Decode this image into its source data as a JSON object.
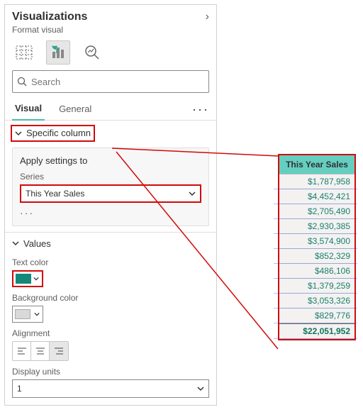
{
  "panel": {
    "title": "Visualizations",
    "subtitle": "Format visual",
    "collapse_icon": "›"
  },
  "search": {
    "placeholder": "Search"
  },
  "tabs": {
    "visual": "Visual",
    "general": "General"
  },
  "specific_column": {
    "label": "Specific column"
  },
  "apply_settings": {
    "title": "Apply settings to",
    "series_label": "Series",
    "series_value": "This Year Sales"
  },
  "values_section": {
    "title": "Values",
    "text_color_label": "Text color",
    "text_color": "#12897a",
    "bg_color_label": "Background color",
    "bg_color": "#d9d9d9",
    "alignment_label": "Alignment",
    "alignment": "right",
    "display_units_label": "Display units",
    "display_units_value": "1"
  },
  "table": {
    "header": "This Year Sales",
    "header_bg": "#64cfc0",
    "cell_bg": "#f3f2f1",
    "value_color": "#1a7f6e",
    "rows": [
      "$1,787,958",
      "$4,452,421",
      "$2,705,490",
      "$2,930,385",
      "$3,574,900",
      "$852,329",
      "$486,106",
      "$1,379,259",
      "$3,053,326",
      "$829,776"
    ],
    "total": "$22,051,952"
  },
  "callout_color": "#d10a0a"
}
